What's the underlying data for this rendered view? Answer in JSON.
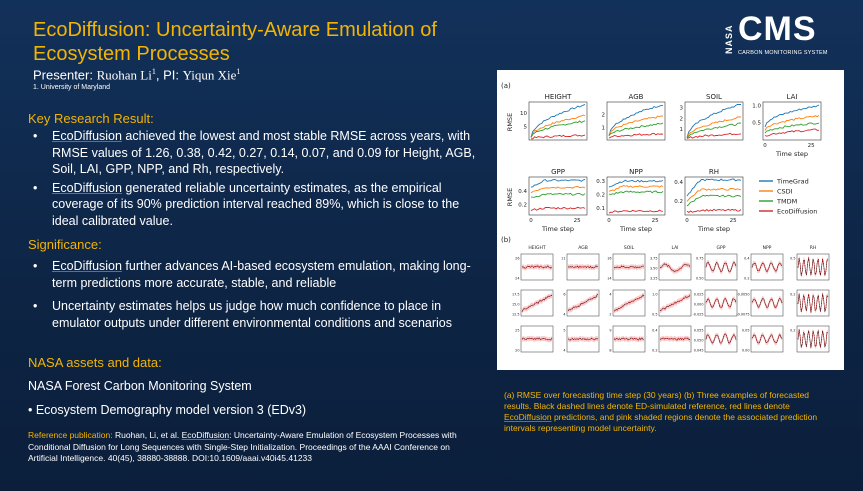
{
  "header": {
    "title": "EcoDiffusion: Uncertainty-Aware Emulation of Ecosystem Processes",
    "presenter_label": "Presenter: ",
    "presenter_name": "Ruohan Li",
    "presenter_sup": "1",
    "pi_label": ", PI: ",
    "pi_name": "Yiqun Xie",
    "pi_sup": "1",
    "affiliation": "1. University of Maryland"
  },
  "logo": {
    "agency": "NASA",
    "program": "CMS",
    "tagline": "CARBON MONITORING SYSTEM"
  },
  "key_result": {
    "heading": "Key Research Result:",
    "bullets": [
      {
        "lead": "EcoDiffusion",
        "text": " achieved the lowest and most stable RMSE across years, with RMSE values of 1.26, 0.38, 0.42, 0.27, 0.14, 0.07, and 0.09 for Height, AGB, Soil, LAI, GPP, NPP, and Rh, respectively."
      },
      {
        "lead": "EcoDiffusion",
        "text": " generated reliable uncertainty estimates, as the empirical coverage of its 90% prediction interval reached 89%, which is close to the ideal calibrated value."
      }
    ]
  },
  "significance": {
    "heading": "Significance:",
    "bullets": [
      {
        "lead": "EcoDiffusion",
        "text": " further advances AI-based ecosystem emulation, making long-term predictions more accurate, stable, and reliable"
      },
      {
        "lead": "",
        "text": "Uncertainty estimates helps us judge how much confidence to place in emulator outputs under different environmental conditions and scenarios"
      }
    ]
  },
  "assets": {
    "heading": "NASA assets and data:",
    "line1": "NASA Forest Carbon Monitoring System",
    "line2": "• Ecosystem Demography model version 3 (EDv3)"
  },
  "reference": {
    "label": "Reference publication: ",
    "authors": "Ruohan, Li, et al. ",
    "lead": "EcoDiffusion",
    "text": ": Uncertainty-Aware Emulation of Ecosystem Processes with Conditional Diffusion for Long Sequences with Single-Step Initialization. Proceedings of the AAAI Conference on Artificial Intelligence. 40(45), 38880-38888. DOI:10.1609/aaai.v40i45.41233"
  },
  "caption": {
    "part1": "(a) RMSE over forecasting time step (30 years) (b) Three examples of forecasted results. Black dashed lines denote ED-simulated reference, red lines denote ",
    "lead": "EcoDiffusion",
    "part2": " predictions, and pink shaded regions denote the associated prediction intervals representing model uncertainty."
  },
  "colors": {
    "title": "#f4b400",
    "background": "#0f2a4a",
    "TimeGrad": "#1f77b4",
    "CSDI": "#ff7f0e",
    "TMDM": "#2ca02c",
    "EcoDiffusion": "#d62728"
  },
  "chart_data": [
    {
      "type": "line",
      "panel_label": "(a)",
      "ylabel": "RMSE",
      "xlabel": "Time step",
      "x_ticks": [
        "0",
        "25"
      ],
      "legend": [
        "TimeGrad",
        "CSDI",
        "TMDM",
        "EcoDiffusion"
      ],
      "subplots": [
        {
          "title": "HEIGHT",
          "y_ticks": [
            "5",
            "10"
          ],
          "ylim": [
            0,
            14
          ],
          "series": {
            "TimeGrad": [
              1,
              13
            ],
            "CSDI": [
              1,
              9
            ],
            "TMDM": [
              1,
              7
            ],
            "EcoDiffusion": [
              0.5,
              1.8
            ]
          }
        },
        {
          "title": "AGB",
          "y_ticks": [
            "1",
            "2"
          ],
          "ylim": [
            0,
            3
          ],
          "series": {
            "TimeGrad": [
              0.4,
              2.8
            ],
            "CSDI": [
              0.4,
              1.9
            ],
            "TMDM": [
              0.3,
              1.3
            ],
            "EcoDiffusion": [
              0.2,
              0.5
            ]
          }
        },
        {
          "title": "SOIL",
          "y_ticks": [
            "1",
            "2",
            "3"
          ],
          "ylim": [
            0,
            3.5
          ],
          "series": {
            "TimeGrad": [
              0.2,
              3.3
            ],
            "CSDI": [
              0.2,
              2.1
            ],
            "TMDM": [
              0.2,
              1.5
            ],
            "EcoDiffusion": [
              0.1,
              0.6
            ]
          }
        },
        {
          "title": "LAI",
          "y_ticks": [
            "0.5",
            "1.0"
          ],
          "ylim": [
            0,
            1.1
          ],
          "series": {
            "TimeGrad": [
              0.4,
              1.0
            ],
            "CSDI": [
              0.3,
              0.7
            ],
            "TMDM": [
              0.2,
              0.5
            ],
            "EcoDiffusion": [
              0.1,
              0.3
            ]
          }
        },
        {
          "title": "GPP",
          "y_ticks": [
            "0.2",
            "0.4"
          ],
          "ylim": [
            0.05,
            0.6
          ],
          "series": {
            "TimeGrad": [
              0.45,
              0.55
            ],
            "CSDI": [
              0.38,
              0.45
            ],
            "TMDM": [
              0.3,
              0.35
            ],
            "EcoDiffusion": [
              0.12,
              0.15
            ]
          }
        },
        {
          "title": "NPP",
          "y_ticks": [
            "0.1",
            "0.2",
            "0.3"
          ],
          "ylim": [
            0.05,
            0.33
          ],
          "series": {
            "TimeGrad": [
              0.26,
              0.3
            ],
            "CSDI": [
              0.22,
              0.26
            ],
            "TMDM": [
              0.2,
              0.22
            ],
            "EcoDiffusion": [
              0.07,
              0.08
            ]
          }
        },
        {
          "title": "RH",
          "y_ticks": [
            "0.2",
            "0.4"
          ],
          "ylim": [
            0.05,
            0.45
          ],
          "series": {
            "TimeGrad": [
              0.25,
              0.42
            ],
            "CSDI": [
              0.2,
              0.32
            ],
            "TMDM": [
              0.15,
              0.25
            ],
            "EcoDiffusion": [
              0.08,
              0.1
            ]
          }
        }
      ]
    },
    {
      "type": "line",
      "panel_label": "(b)",
      "subplots": [
        {
          "title": "HEIGHT",
          "y_ticks": [
            [
              "26",
              "24"
            ],
            [
              "17.5",
              "15.0",
              "12.5"
            ],
            [
              "25",
              "20"
            ]
          ]
        },
        {
          "title": "AGB",
          "y_ticks": [
            [
              "11"
            ],
            [
              "6",
              "4"
            ],
            [
              "5",
              "4"
            ]
          ]
        },
        {
          "title": "SOIL",
          "y_ticks": [
            [
              "16",
              "14"
            ],
            [
              "4",
              "2"
            ],
            [
              "9",
              "8"
            ]
          ]
        },
        {
          "title": "LAI",
          "y_ticks": [
            [
              "3.75",
              "3.50",
              "3.25"
            ],
            [
              "1.0",
              "0.5"
            ],
            [
              "0.4",
              "0.2"
            ]
          ]
        },
        {
          "title": "GPP",
          "y_ticks": [
            [
              "0.75",
              "0.50"
            ],
            [
              "0.025",
              "0.000",
              "-0.025"
            ],
            [
              "0.055",
              "0.050",
              "0.045"
            ]
          ]
        },
        {
          "title": "NPP",
          "y_ticks": [
            [
              "0.4",
              "0.2"
            ],
            [
              "-0.0050",
              "-0.0075"
            ],
            [
              "0.05",
              "0.00"
            ]
          ]
        },
        {
          "title": "RH",
          "y_ticks": [
            [
              "0.5"
            ],
            [
              "0.2"
            ],
            [
              "0.2"
            ]
          ]
        }
      ]
    }
  ]
}
